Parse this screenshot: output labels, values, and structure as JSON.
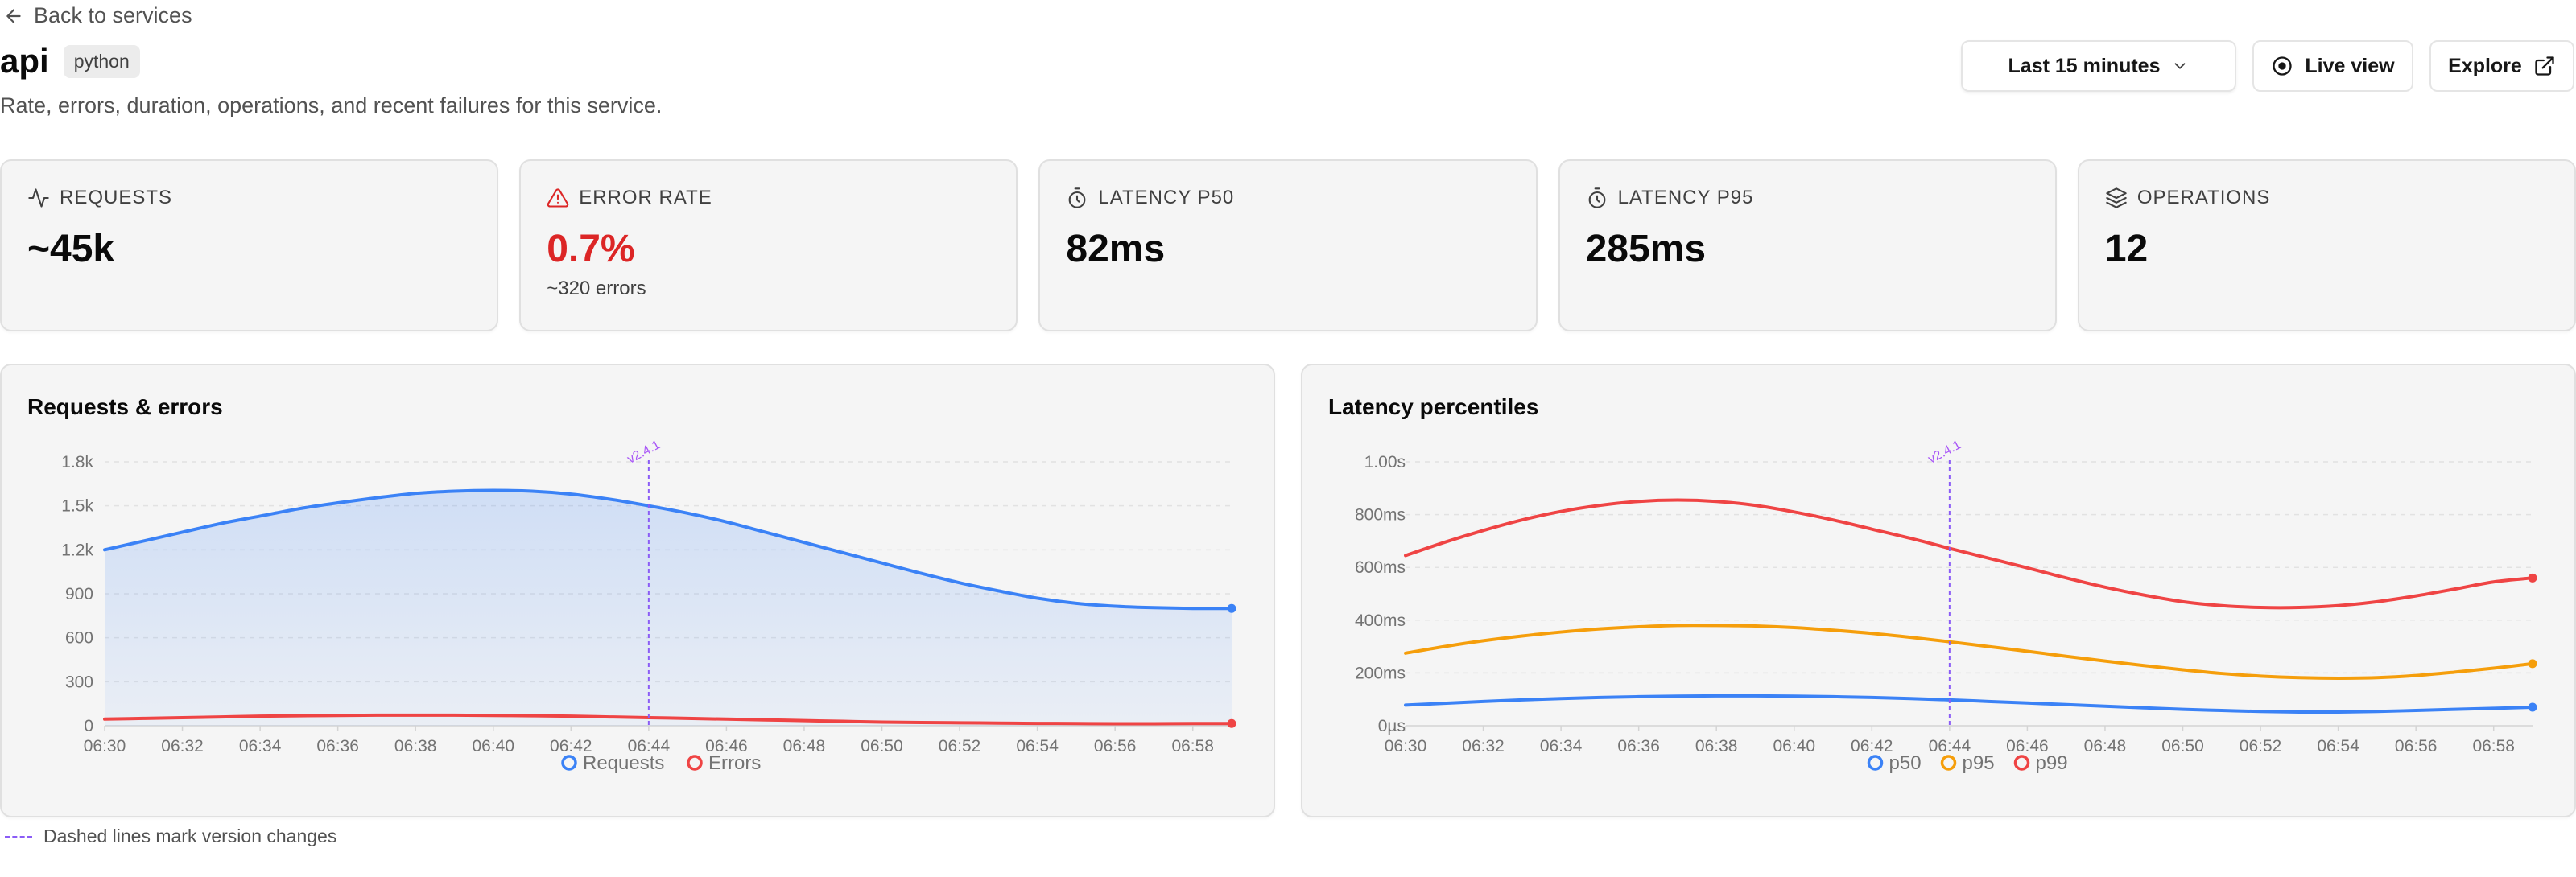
{
  "nav": {
    "back_label": "Back to services"
  },
  "service": {
    "name": "api",
    "language": "python",
    "description": "Rate, errors, duration, operations, and recent failures for this service."
  },
  "header": {
    "time_range": "Last 15 minutes",
    "live_view_label": "Live view",
    "explore_label": "Explore"
  },
  "stats": [
    {
      "label": "REQUESTS",
      "value": "~45k",
      "icon": "activity-icon"
    },
    {
      "label": "ERROR RATE",
      "value": "0.7%",
      "sub": "~320 errors",
      "icon": "alert-triangle-icon",
      "status_color": "#dc2626"
    },
    {
      "label": "LATENCY P50",
      "value": "82ms",
      "icon": "timer-icon"
    },
    {
      "label": "LATENCY P95",
      "value": "285ms",
      "icon": "timer-icon"
    },
    {
      "label": "OPERATIONS",
      "value": "12",
      "icon": "layers-icon"
    }
  ],
  "chart_data": [
    {
      "type": "area",
      "title": "Requests & errors",
      "x": [
        "06:30",
        "06:31",
        "06:32",
        "06:33",
        "06:34",
        "06:35",
        "06:36",
        "06:37",
        "06:38",
        "06:39",
        "06:40",
        "06:41",
        "06:42",
        "06:43",
        "06:44",
        "06:45",
        "06:46",
        "06:47",
        "06:48",
        "06:49",
        "06:50",
        "06:51",
        "06:52",
        "06:53",
        "06:54",
        "06:55",
        "06:56",
        "06:57",
        "06:58",
        "06:59"
      ],
      "x_ticks": [
        "06:30",
        "06:32",
        "06:34",
        "06:36",
        "06:38",
        "06:40",
        "06:42",
        "06:44",
        "06:46",
        "06:48",
        "06:50",
        "06:52",
        "06:54",
        "06:56",
        "06:58"
      ],
      "y_ticks": [
        "0",
        "300",
        "600",
        "900",
        "1.2k",
        "1.5k",
        "1.8k"
      ],
      "ylim": [
        0,
        1800
      ],
      "grid": true,
      "legend": "bottom-center",
      "version_marker": {
        "x": "06:44",
        "label": "v2.4.1",
        "color": "#8b5cf6"
      },
      "series": [
        {
          "name": "Requests",
          "color": "#3b82f6",
          "fill": true,
          "values": [
            1200,
            1260,
            1320,
            1380,
            1430,
            1480,
            1520,
            1555,
            1585,
            1600,
            1605,
            1600,
            1580,
            1545,
            1500,
            1450,
            1390,
            1320,
            1250,
            1180,
            1110,
            1040,
            975,
            920,
            870,
            835,
            815,
            805,
            800,
            800
          ]
        },
        {
          "name": "Errors",
          "color": "#ef4444",
          "fill": false,
          "values": [
            45,
            50,
            55,
            60,
            65,
            68,
            70,
            72,
            72,
            72,
            70,
            68,
            65,
            60,
            55,
            50,
            45,
            40,
            35,
            30,
            25,
            22,
            20,
            18,
            16,
            15,
            14,
            14,
            15,
            15
          ]
        }
      ]
    },
    {
      "type": "line",
      "title": "Latency percentiles",
      "x": [
        "06:30",
        "06:31",
        "06:32",
        "06:33",
        "06:34",
        "06:35",
        "06:36",
        "06:37",
        "06:38",
        "06:39",
        "06:40",
        "06:41",
        "06:42",
        "06:43",
        "06:44",
        "06:45",
        "06:46",
        "06:47",
        "06:48",
        "06:49",
        "06:50",
        "06:51",
        "06:52",
        "06:53",
        "06:54",
        "06:55",
        "06:56",
        "06:57",
        "06:58",
        "06:59"
      ],
      "x_ticks": [
        "06:30",
        "06:32",
        "06:34",
        "06:36",
        "06:38",
        "06:40",
        "06:42",
        "06:44",
        "06:46",
        "06:48",
        "06:50",
        "06:52",
        "06:54",
        "06:56",
        "06:58"
      ],
      "y_ticks": [
        "0µs",
        "200ms",
        "400ms",
        "600ms",
        "800ms",
        "1.00s"
      ],
      "ylim": [
        0,
        1000
      ],
      "grid": true,
      "legend": "bottom-center",
      "version_marker": {
        "x": "06:44",
        "label": "v2.4.1",
        "color": "#8b5cf6"
      },
      "series": [
        {
          "name": "p50",
          "color": "#3b82f6",
          "values": [
            78,
            85,
            92,
            98,
            103,
            107,
            110,
            112,
            113,
            113,
            112,
            110,
            107,
            103,
            98,
            92,
            86,
            80,
            74,
            68,
            62,
            58,
            54,
            52,
            52,
            54,
            58,
            62,
            66,
            70
          ]
        },
        {
          "name": "p95",
          "color": "#f59e0b",
          "values": [
            275,
            300,
            322,
            340,
            355,
            367,
            375,
            380,
            380,
            378,
            372,
            362,
            350,
            335,
            318,
            300,
            282,
            263,
            245,
            228,
            212,
            198,
            188,
            182,
            180,
            182,
            190,
            203,
            218,
            235
          ]
        },
        {
          "name": "p99",
          "color": "#ef4444",
          "values": [
            645,
            695,
            740,
            780,
            812,
            835,
            850,
            855,
            850,
            835,
            810,
            780,
            745,
            710,
            672,
            635,
            598,
            560,
            525,
            495,
            470,
            455,
            448,
            448,
            455,
            470,
            492,
            518,
            545,
            560
          ]
        }
      ]
    }
  ],
  "footnote": "Dashed lines mark version changes"
}
